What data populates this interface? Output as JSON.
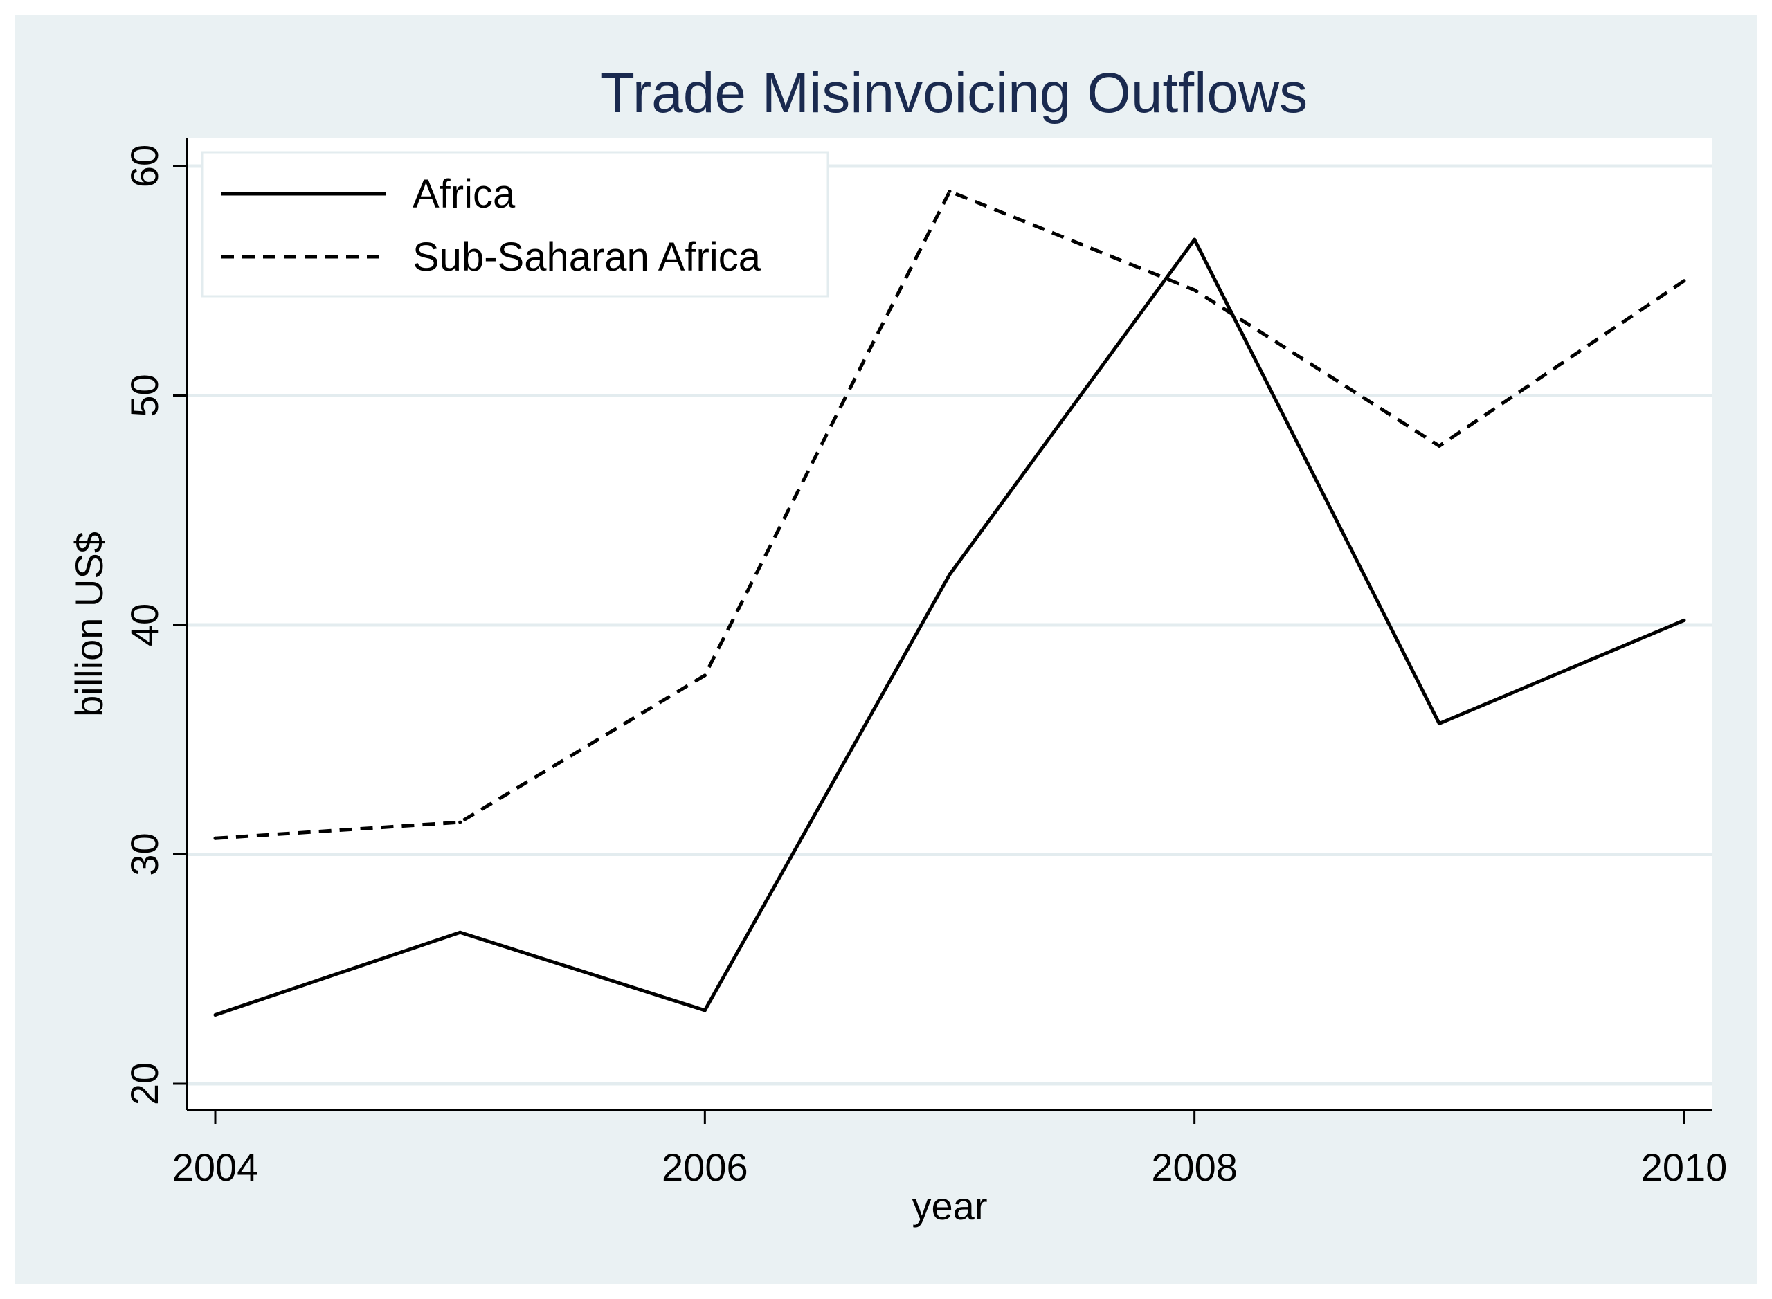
{
  "chart_data": {
    "type": "line",
    "title": "Trade Misinvoicing Outflows",
    "xlabel": "year",
    "ylabel": "billion US$",
    "x": [
      2004,
      2005,
      2006,
      2007,
      2008,
      2009,
      2010
    ],
    "xlim": [
      2004,
      2010
    ],
    "ylim": [
      20,
      60
    ],
    "x_ticks": [
      "2004",
      "2006",
      "2008",
      "2010"
    ],
    "y_ticks": [
      "20",
      "30",
      "40",
      "50",
      "60"
    ],
    "grid": true,
    "legend_position": "top-left",
    "series": [
      {
        "name": "Africa",
        "style": "solid",
        "values": [
          23.0,
          26.6,
          23.2,
          42.2,
          56.8,
          35.7,
          40.2
        ]
      },
      {
        "name": "Sub-Saharan Africa",
        "style": "dashed",
        "values": [
          30.7,
          31.4,
          37.8,
          58.9,
          54.6,
          47.8,
          55.0
        ]
      }
    ],
    "colors": {
      "background": "#eaf1f3",
      "plot_background": "#ffffff",
      "grid": "#e3ecef",
      "title": "#1a2a4f",
      "lines": "#000000"
    }
  }
}
